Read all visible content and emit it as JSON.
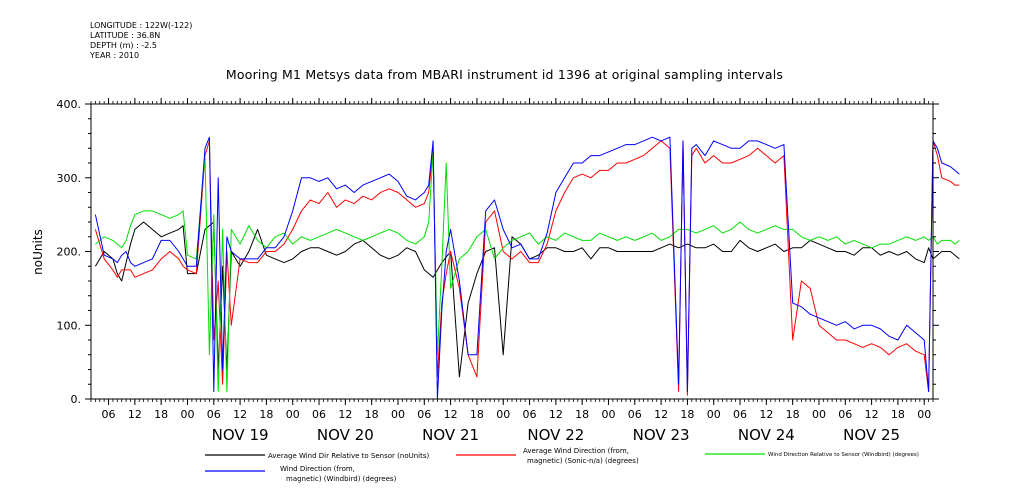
{
  "meta": {
    "longitude": "LONGITUDE : 122W(-122)",
    "latitude": "LATITUDE : 36.8N",
    "depth": "DEPTH (m) : -2.5",
    "year": "YEAR : 2010"
  },
  "chart_data": {
    "type": "line",
    "title": "Mooring M1 Metsys data from MBARI instrument id 1396 at original sampling intervals",
    "ylabel": "noUnits",
    "ylim": [
      0,
      400
    ],
    "yticks": [
      0,
      100,
      200,
      300,
      400
    ],
    "ytick_labels": [
      "0.",
      "100.",
      "200.",
      "300.",
      "400."
    ],
    "xlim": [
      "2010-11-18T02:00",
      "2010-11-26T02:00"
    ],
    "hour_ticks": [
      "06",
      "12",
      "18",
      "00",
      "06",
      "12",
      "18",
      "00",
      "06",
      "12",
      "18",
      "00",
      "06",
      "12",
      "18",
      "00",
      "06",
      "12",
      "18",
      "00",
      "06",
      "12",
      "18",
      "00",
      "06",
      "12",
      "18",
      "00",
      "06",
      "12",
      "18",
      "00"
    ],
    "day_labels": [
      "NOV 19",
      "NOV 20",
      "NOV 21",
      "NOV 22",
      "NOV 23",
      "NOV 24",
      "NOV 25"
    ],
    "x_unit": "hours since 2010-11-18T00:00",
    "series": [
      {
        "name": "Average Wind Dir Relative to Sensor (noUnits)",
        "color": "#000000",
        "x": [
          3,
          5,
          7,
          8,
          9,
          10,
          11,
          12,
          14,
          16,
          18,
          20,
          22,
          23,
          24,
          26,
          28,
          30,
          31,
          32,
          33,
          34,
          36,
          38,
          40,
          42,
          44,
          46,
          48,
          50,
          52,
          54,
          56,
          58,
          60,
          62,
          64,
          66,
          68,
          70,
          72,
          74,
          76,
          78,
          80,
          82,
          84,
          86,
          88,
          90,
          92,
          94,
          96,
          98,
          100,
          102,
          104,
          106,
          108,
          110,
          112,
          114,
          116,
          118,
          120,
          122,
          124,
          126,
          128,
          130,
          132,
          134,
          136,
          138,
          140,
          142,
          144,
          146,
          148,
          150,
          152,
          154,
          156,
          158,
          160,
          162,
          164,
          166,
          168,
          170,
          172,
          174,
          176,
          178,
          180,
          182,
          184,
          186,
          188,
          190,
          192,
          193,
          194,
          195,
          196,
          198,
          199,
          200
        ],
        "y": [
          180,
          200,
          190,
          170,
          160,
          185,
          210,
          230,
          240,
          230,
          220,
          225,
          230,
          235,
          170,
          170,
          230,
          240,
          40,
          180,
          40,
          200,
          180,
          200,
          230,
          195,
          190,
          185,
          190,
          200,
          205,
          205,
          200,
          195,
          200,
          210,
          215,
          205,
          195,
          190,
          195,
          205,
          200,
          175,
          165,
          185,
          200,
          30,
          130,
          170,
          200,
          205,
          60,
          220,
          210,
          190,
          195,
          205,
          205,
          200,
          200,
          205,
          190,
          205,
          205,
          200,
          200,
          200,
          200,
          200,
          205,
          210,
          205,
          210,
          205,
          205,
          210,
          200,
          200,
          215,
          205,
          200,
          205,
          210,
          200,
          205,
          205,
          215,
          210,
          205,
          200,
          200,
          195,
          205,
          205,
          195,
          200,
          195,
          200,
          190,
          185,
          205,
          190,
          195,
          200,
          200,
          195,
          190
        ]
      },
      {
        "name": "Average Wind Direction (from, magnetic) (Sonic-n/a) (degrees)",
        "color": "#ff0000",
        "x": [
          3,
          5,
          7,
          8,
          9,
          10,
          11,
          12,
          14,
          16,
          18,
          20,
          22,
          23,
          24,
          26,
          28,
          29,
          30,
          31,
          32,
          33,
          34,
          36,
          38,
          40,
          42,
          44,
          46,
          48,
          50,
          52,
          54,
          56,
          58,
          60,
          62,
          64,
          66,
          68,
          70,
          72,
          74,
          76,
          78,
          79,
          80,
          81,
          82,
          83,
          84,
          86,
          88,
          90,
          92,
          94,
          96,
          98,
          100,
          102,
          104,
          106,
          108,
          110,
          112,
          114,
          116,
          118,
          120,
          122,
          124,
          126,
          128,
          130,
          132,
          134,
          136,
          137,
          138,
          139,
          140,
          142,
          144,
          146,
          148,
          150,
          152,
          154,
          156,
          158,
          160,
          162,
          164,
          166,
          168,
          170,
          172,
          174,
          176,
          178,
          180,
          182,
          184,
          186,
          188,
          190,
          192,
          193,
          194,
          195,
          196,
          198,
          199,
          200
        ],
        "y": [
          230,
          190,
          175,
          165,
          175,
          175,
          175,
          165,
          170,
          175,
          190,
          200,
          190,
          180,
          175,
          170,
          330,
          350,
          80,
          160,
          20,
          200,
          100,
          190,
          185,
          185,
          200,
          200,
          210,
          230,
          255,
          270,
          265,
          280,
          260,
          270,
          265,
          275,
          270,
          280,
          285,
          280,
          270,
          260,
          265,
          280,
          340,
          30,
          130,
          170,
          200,
          150,
          60,
          30,
          240,
          255,
          200,
          190,
          200,
          185,
          185,
          210,
          255,
          280,
          300,
          305,
          300,
          310,
          310,
          320,
          320,
          325,
          330,
          340,
          350,
          340,
          10,
          350,
          5,
          330,
          340,
          320,
          330,
          320,
          320,
          325,
          330,
          340,
          330,
          320,
          330,
          80,
          160,
          150,
          100,
          90,
          80,
          80,
          75,
          70,
          75,
          70,
          60,
          70,
          75,
          65,
          60,
          10,
          350,
          330,
          300,
          295,
          290,
          290
        ]
      },
      {
        "name": "Wind Direction Relative to Sensor (Windbird) (degrees)",
        "color": "#00e000",
        "x": [
          3,
          5,
          7,
          8,
          9,
          10,
          11,
          12,
          14,
          16,
          18,
          20,
          22,
          23,
          24,
          26,
          28,
          29,
          30,
          31,
          32,
          33,
          34,
          36,
          38,
          40,
          42,
          44,
          46,
          48,
          50,
          52,
          54,
          56,
          58,
          60,
          62,
          64,
          66,
          68,
          70,
          72,
          74,
          76,
          78,
          79,
          80,
          81,
          82,
          83,
          84,
          86,
          88,
          90,
          92,
          94,
          96,
          98,
          100,
          102,
          104,
          106,
          108,
          110,
          112,
          114,
          116,
          118,
          120,
          122,
          124,
          126,
          128,
          130,
          132,
          134,
          136,
          138,
          140,
          142,
          144,
          146,
          148,
          150,
          152,
          154,
          156,
          158,
          160,
          162,
          164,
          166,
          168,
          170,
          172,
          174,
          176,
          178,
          180,
          182,
          184,
          186,
          188,
          190,
          192,
          193,
          194,
          195,
          196,
          198,
          199,
          200
        ],
        "y": [
          210,
          220,
          215,
          210,
          205,
          215,
          235,
          250,
          255,
          255,
          250,
          245,
          250,
          255,
          195,
          190,
          330,
          60,
          250,
          10,
          230,
          10,
          230,
          210,
          235,
          215,
          205,
          220,
          225,
          210,
          220,
          215,
          220,
          225,
          230,
          225,
          220,
          215,
          220,
          225,
          230,
          225,
          215,
          210,
          220,
          240,
          335,
          60,
          180,
          320,
          150,
          190,
          200,
          220,
          230,
          190,
          205,
          215,
          220,
          225,
          210,
          220,
          215,
          225,
          220,
          215,
          215,
          225,
          220,
          215,
          220,
          215,
          220,
          225,
          215,
          220,
          230,
          230,
          225,
          230,
          235,
          225,
          230,
          240,
          230,
          225,
          230,
          235,
          230,
          230,
          220,
          215,
          220,
          215,
          220,
          210,
          215,
          210,
          205,
          210,
          210,
          215,
          220,
          215,
          220,
          215,
          220,
          210,
          215,
          215,
          210,
          215
        ]
      },
      {
        "name": "Wind Direction (from, magnetic) (Windbird) (degrees)",
        "color": "#0000ff",
        "x": [
          3,
          5,
          7,
          8,
          9,
          10,
          11,
          12,
          14,
          16,
          18,
          20,
          22,
          23,
          24,
          26,
          28,
          29,
          30,
          31,
          32,
          33,
          34,
          36,
          38,
          40,
          42,
          44,
          46,
          48,
          50,
          52,
          54,
          56,
          58,
          60,
          62,
          64,
          66,
          68,
          70,
          72,
          74,
          76,
          78,
          79,
          80,
          81,
          82,
          83,
          84,
          86,
          88,
          90,
          92,
          94,
          96,
          98,
          100,
          102,
          104,
          106,
          108,
          110,
          112,
          114,
          116,
          118,
          120,
          122,
          124,
          126,
          128,
          130,
          132,
          134,
          136,
          137,
          138,
          139,
          140,
          142,
          144,
          146,
          148,
          150,
          152,
          154,
          156,
          158,
          160,
          162,
          164,
          166,
          168,
          170,
          172,
          174,
          176,
          178,
          180,
          182,
          184,
          186,
          188,
          190,
          192,
          193,
          194,
          195,
          196,
          198,
          199,
          200
        ],
        "y": [
          250,
          195,
          190,
          185,
          195,
          200,
          185,
          180,
          185,
          190,
          215,
          215,
          200,
          190,
          180,
          180,
          340,
          355,
          10,
          300,
          40,
          220,
          200,
          190,
          190,
          190,
          205,
          205,
          220,
          255,
          300,
          300,
          295,
          300,
          285,
          290,
          280,
          290,
          295,
          300,
          305,
          295,
          275,
          270,
          280,
          290,
          350,
          0,
          120,
          200,
          230,
          160,
          60,
          60,
          255,
          270,
          230,
          205,
          210,
          190,
          190,
          225,
          280,
          300,
          320,
          320,
          330,
          330,
          335,
          340,
          345,
          345,
          350,
          355,
          350,
          355,
          20,
          350,
          10,
          340,
          345,
          330,
          350,
          345,
          340,
          340,
          350,
          350,
          345,
          340,
          345,
          130,
          125,
          115,
          110,
          105,
          100,
          105,
          95,
          100,
          100,
          95,
          85,
          80,
          100,
          90,
          80,
          10,
          350,
          340,
          320,
          315,
          310,
          305
        ]
      }
    ]
  },
  "legend": {
    "black_label_1": "Average Wind Dir Relative to Sensor (noUnits)",
    "red_label_1": "Average Wind Direction (from,",
    "red_label_2": "magnetic) (Sonic-n/a) (degrees)",
    "green_label_1": "Wind Direction Relative to Sensor (Windbird) (degrees)",
    "blue_label_1": "Wind Direction (from,",
    "blue_label_2": "magnetic) (Windbird) (degrees)"
  }
}
